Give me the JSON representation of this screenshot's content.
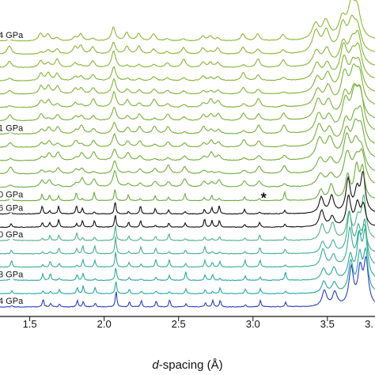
{
  "chart_data": {
    "type": "line",
    "title": "",
    "xlabel_italic": "d",
    "xlabel_rest": "-spacing (Å)",
    "ylabel": "",
    "xlim": [
      1.3,
      3.82
    ],
    "x_ticks": [
      1.5,
      2.0,
      2.5,
      3.0,
      3.5
    ],
    "x_tick_labels": [
      "1.5",
      "2.0",
      "2.5",
      "3.0",
      "3.5"
    ],
    "extra_tick_label": "3.",
    "grid": false,
    "annotation": "*",
    "annotation_x": 3.08,
    "peak_positions": [
      1.38,
      1.59,
      1.64,
      1.7,
      1.82,
      1.86,
      1.94,
      2.08,
      2.17,
      2.25,
      2.35,
      2.44,
      2.55,
      2.68,
      2.73,
      2.78,
      2.95,
      3.05,
      3.22,
      3.48,
      3.55,
      3.66,
      3.72,
      3.76
    ],
    "pressure_labels": [
      {
        "trace": 0,
        "text": "4 GPa"
      },
      {
        "trace": 2,
        "text": "3 GPa"
      },
      {
        "trace": 5,
        "text": "0 GPa"
      },
      {
        "trace": 7,
        "text": "6 GPa"
      },
      {
        "trace": 8,
        "text": "0 GPa"
      },
      {
        "trace": 13,
        "text": "1 GPa"
      },
      {
        "trace": 20,
        "text": "4 GPa"
      }
    ],
    "series": [
      {
        "color": "#2b3fbf"
      },
      {
        "color": "#2aa7a0"
      },
      {
        "color": "#2fa89a"
      },
      {
        "color": "#38ad95"
      },
      {
        "color": "#45b08d"
      },
      {
        "color": "#52b286"
      },
      {
        "color": "#111111"
      },
      {
        "color": "#111111"
      },
      {
        "color": "#6dab3f"
      },
      {
        "color": "#6fac3e"
      },
      {
        "color": "#72ad3d"
      },
      {
        "color": "#74ae3c"
      },
      {
        "color": "#77af3b"
      },
      {
        "color": "#79b03b"
      },
      {
        "color": "#7cb13a"
      },
      {
        "color": "#7fb239"
      },
      {
        "color": "#82b338"
      },
      {
        "color": "#85b437"
      },
      {
        "color": "#88b536"
      },
      {
        "color": "#8ab635"
      },
      {
        "color": "#8db734"
      }
    ]
  }
}
